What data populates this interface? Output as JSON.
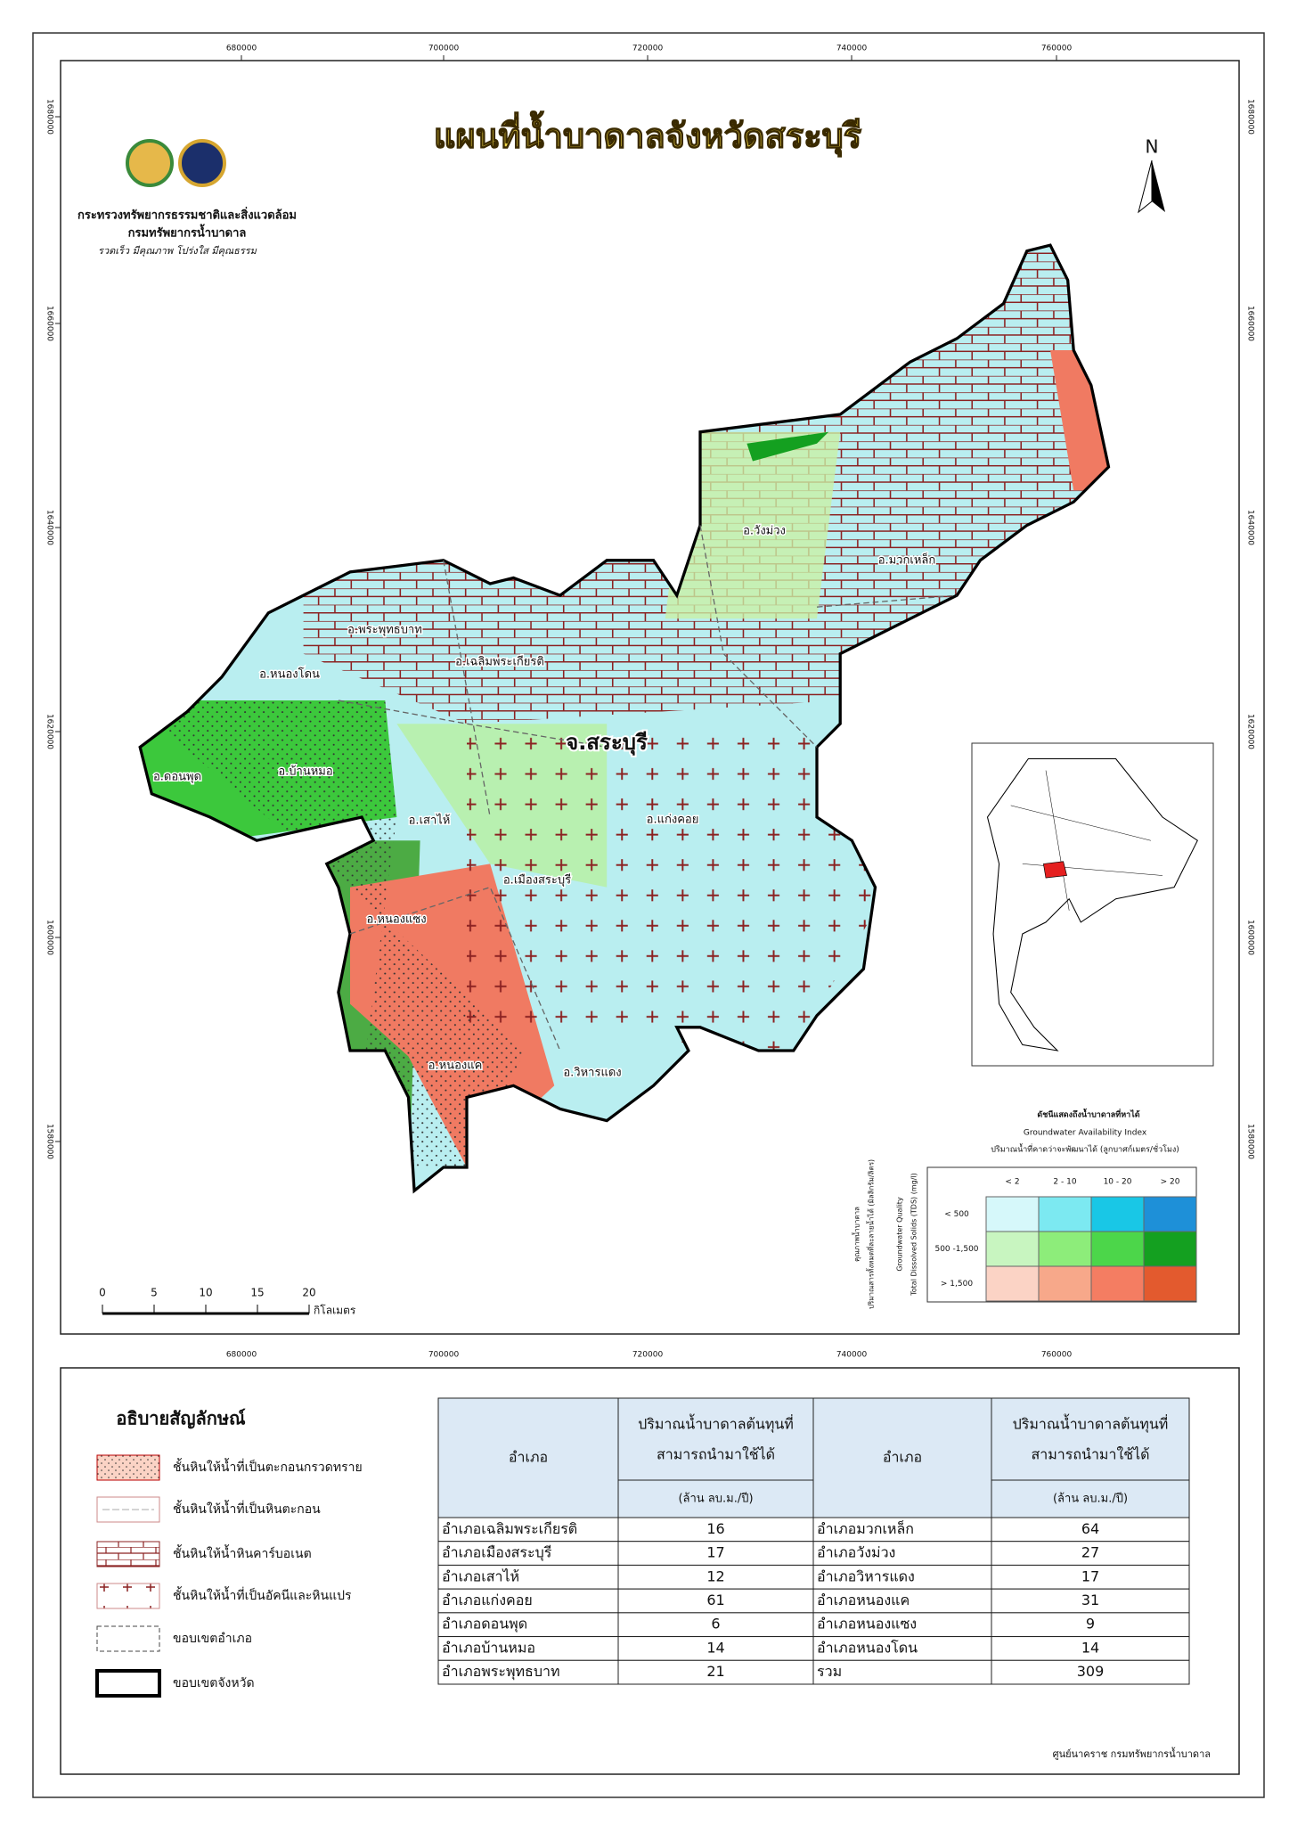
{
  "header": {
    "title": "แผนที่น้ำบาดาลจังหวัดสระบุรี",
    "ministry": "กระทรวงทรัพยากรธรรมชาติและสิ่งแวดล้อม",
    "department": "กรมทรัพยากรน้ำบาดาล",
    "slogan": "รวดเร็ว มีคุณภาพ โปร่งใส มีคุณธรรม"
  },
  "map": {
    "north": "N",
    "province_label": "จ.สระบุรี",
    "districts": [
      "อ.พระพุทธบาท",
      "อ.หนองโดน",
      "อ.เฉลิมพระเกียรติ",
      "อ.ดอนพุด",
      "อ.บ้านหมอ",
      "อ.เสาไห้",
      "อ.แก่งคอย",
      "อ.เมืองสระบุรี",
      "อ.หนองแซง",
      "อ.หนองแค",
      "อ.วิหารแดง",
      "อ.วังม่วง",
      "อ.มวกเหล็ก"
    ],
    "easting_ticks": [
      680000,
      700000,
      720000,
      740000,
      760000
    ],
    "northing_ticks": [
      1680000,
      1660000,
      1640000,
      1620000,
      1600000,
      1580000
    ]
  },
  "scale_bar": {
    "ticks": [
      0,
      5,
      10,
      15,
      20
    ],
    "unit": "กิโลเมตร"
  },
  "availability_legend": {
    "title_th": "ดัชนีแสดงถึงน้ำบาดาลที่หาได้",
    "title_en": "Groundwater Availability Index",
    "subtitle": "ปริมาณน้ำที่คาดว่าจะพัฒนาได้ (ลูกบาศก์เมตร/ชั่วโมง)",
    "quality_th": "คุณภาพน้ำบาดาล",
    "quality_th_sub": "ปริมาณสารทั้งหมดที่ละลายน้ำได้ (มิลลิกรัม/ลิตร)",
    "quality_en": "Groundwater Quality",
    "quality_en_sub": "Total Dissolved Solids (TDS) (mg/l)",
    "columns": [
      "< 2",
      "2 - 10",
      "10 - 20",
      "> 20"
    ],
    "rows": [
      "< 500",
      "500 -1,500",
      "> 1,500"
    ],
    "colors": [
      [
        "#d6f8fa",
        "#7ce9f1",
        "#19c7e6",
        "#1e90d8"
      ],
      [
        "#c8f5c0",
        "#8ded7a",
        "#4cd64a",
        "#14a020"
      ],
      [
        "#fbd3c5",
        "#f7a88a",
        "#f47d62",
        "#e35a2e"
      ]
    ]
  },
  "legend": {
    "title": "อธิบายสัญลักษณ์",
    "items": [
      "ชั้นหินให้น้ำที่เป็นตะกอนกรวดทราย",
      "ชั้นหินให้น้ำที่เป็นหินตะกอน",
      "ชั้นหินให้น้ำหินคาร์บอเนต",
      "ชั้นหินให้น้ำที่เป็นอัคนีและหินแปร",
      "ขอบเขตอำเภอ",
      "ขอบเขตจังหวัด"
    ]
  },
  "table": {
    "header": {
      "district": "อำเภอ",
      "amount_lines": [
        "ปริมาณน้ำบาดาลต้นทุนที่",
        "สามารถนำมาใช้ได้"
      ],
      "unit": "(ล้าน ลบ.ม./ปี)"
    },
    "rows": [
      [
        "อำเภอเฉลิมพระเกียรติ",
        16,
        "อำเภอมวกเหล็ก",
        64
      ],
      [
        "อำเภอเมืองสระบุรี",
        17,
        "อำเภอวังม่วง",
        27
      ],
      [
        "อำเภอเสาไห้",
        12,
        "อำเภอวิหารแดง",
        17
      ],
      [
        "อำเภอแก่งคอย",
        61,
        "อำเภอหนองแค",
        31
      ],
      [
        "อำเภอดอนพุด",
        6,
        "อำเภอหนองแซง",
        9
      ],
      [
        "อำเภอบ้านหมอ",
        14,
        "อำเภอหนองโดน",
        14
      ],
      [
        "อำเภอพระพุทธบาท",
        21,
        "รวม",
        309
      ]
    ]
  },
  "footer": "ศูนย์นาคราช กรมทรัพยากรน้ำบาดาล"
}
